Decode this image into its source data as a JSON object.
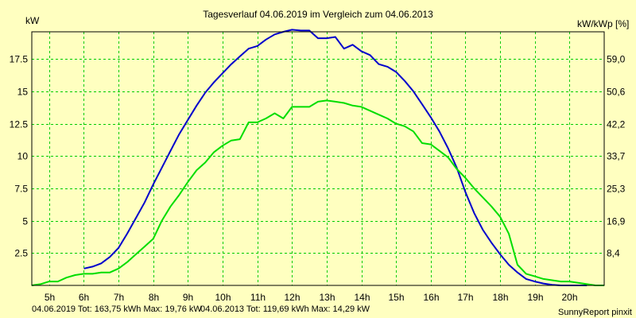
{
  "chart_data": {
    "type": "line",
    "title": "Tagesverlauf 04.06.2019 im Vergleich zum 04.06.2013",
    "ylabel_left": "kW",
    "ylabel_right": "kW/kWp [%]",
    "x_ticks": [
      "5h",
      "6h",
      "7h",
      "8h",
      "9h",
      "10h",
      "11h",
      "12h",
      "13h",
      "14h",
      "15h",
      "16h",
      "17h",
      "18h",
      "19h",
      "20h"
    ],
    "y_ticks": [
      "2.5",
      "5",
      "7.5",
      "10",
      "12.5",
      "15",
      "17.5"
    ],
    "y2_ticks": [
      "8,4",
      "16,9",
      "25,3",
      "33,7",
      "42,2",
      "50,6",
      "59,0"
    ],
    "xlim": [
      4.5,
      21.0
    ],
    "ylim": [
      0,
      19.6
    ],
    "grid": true,
    "series": [
      {
        "name": "04.06.2019",
        "color": "#0000cc",
        "x": [
          6.0,
          6.25,
          6.5,
          6.75,
          7.0,
          7.25,
          7.5,
          7.75,
          8.0,
          8.25,
          8.5,
          8.75,
          9.0,
          9.25,
          9.5,
          9.75,
          10.0,
          10.25,
          10.5,
          10.75,
          11.0,
          11.25,
          11.5,
          11.75,
          12.0,
          12.25,
          12.5,
          12.75,
          13.0,
          13.25,
          13.5,
          13.75,
          14.0,
          14.25,
          14.5,
          14.75,
          15.0,
          15.25,
          15.5,
          15.75,
          16.0,
          16.25,
          16.5,
          16.75,
          17.0,
          17.25,
          17.5,
          17.75,
          18.0,
          18.25,
          18.5,
          18.75,
          19.0,
          19.25,
          19.5,
          19.75,
          20.0,
          20.25,
          20.5
        ],
        "values": [
          1.3,
          1.45,
          1.7,
          2.2,
          2.9,
          4.0,
          5.2,
          6.4,
          7.8,
          9.1,
          10.4,
          11.7,
          12.8,
          13.9,
          14.9,
          15.7,
          16.4,
          17.1,
          17.7,
          18.3,
          18.5,
          19.0,
          19.4,
          19.6,
          19.76,
          19.7,
          19.7,
          19.1,
          19.1,
          19.2,
          18.3,
          18.6,
          18.1,
          17.8,
          17.1,
          16.9,
          16.5,
          15.8,
          15.0,
          14.0,
          13.0,
          11.9,
          10.6,
          9.1,
          7.2,
          5.6,
          4.3,
          3.3,
          2.4,
          1.6,
          1.0,
          0.5,
          0.3,
          0.15,
          0.05,
          0.0,
          0.0,
          0.0,
          0.0
        ],
        "legend_text": "04.06.2019 Tot: 163,75 kWh Max: 19,76 kW"
      },
      {
        "name": "04.06.2013",
        "color": "#00dd00",
        "x": [
          4.5,
          4.75,
          5.0,
          5.25,
          5.5,
          5.75,
          6.0,
          6.25,
          6.5,
          6.75,
          7.0,
          7.25,
          7.5,
          7.75,
          8.0,
          8.25,
          8.5,
          8.75,
          9.0,
          9.25,
          9.5,
          9.75,
          10.0,
          10.25,
          10.5,
          10.75,
          11.0,
          11.25,
          11.5,
          11.75,
          12.0,
          12.25,
          12.5,
          12.75,
          13.0,
          13.25,
          13.5,
          13.75,
          14.0,
          14.25,
          14.5,
          14.75,
          15.0,
          15.25,
          15.5,
          15.75,
          16.0,
          16.25,
          16.5,
          16.75,
          17.0,
          17.25,
          17.5,
          17.75,
          18.0,
          18.25,
          18.5,
          18.75,
          19.0,
          19.25,
          19.5,
          19.75,
          20.0,
          20.25,
          20.5,
          20.75,
          21.0
        ],
        "values": [
          0.0,
          0.1,
          0.3,
          0.3,
          0.6,
          0.8,
          0.9,
          0.9,
          1.0,
          1.0,
          1.3,
          1.8,
          2.4,
          3.0,
          3.6,
          5.0,
          6.1,
          7.0,
          8.0,
          8.9,
          9.5,
          10.3,
          10.8,
          11.2,
          11.3,
          12.6,
          12.6,
          12.9,
          13.3,
          12.9,
          13.8,
          13.8,
          13.8,
          14.2,
          14.29,
          14.2,
          14.1,
          13.9,
          13.8,
          13.5,
          13.2,
          12.9,
          12.5,
          12.3,
          11.9,
          11.0,
          10.9,
          10.4,
          9.9,
          9.0,
          8.3,
          7.5,
          6.8,
          6.1,
          5.3,
          4.0,
          1.6,
          0.9,
          0.7,
          0.5,
          0.4,
          0.3,
          0.3,
          0.2,
          0.1,
          0.0,
          0.0
        ],
        "legend_text": "04.06.2013 Tot: 119,69 kWh Max: 14,29 kW"
      }
    ]
  },
  "footer": {
    "credit": "SunnyReport pinxit"
  }
}
